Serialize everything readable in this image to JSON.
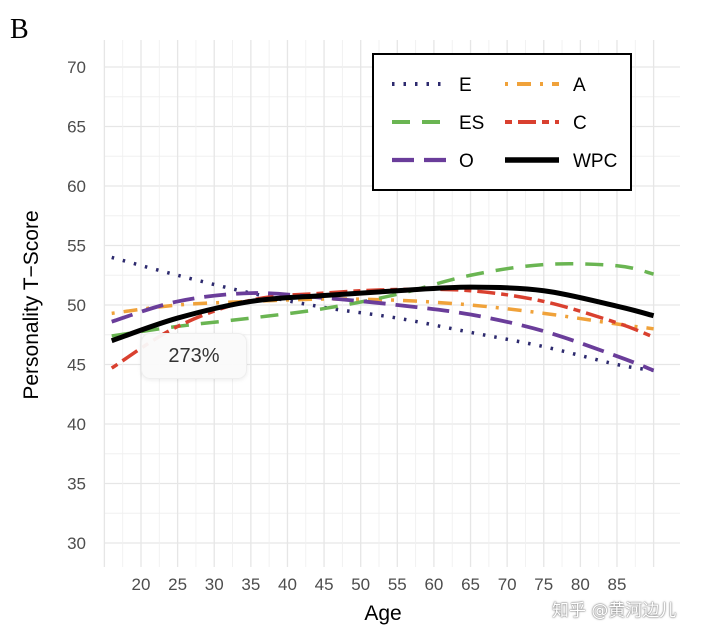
{
  "panel_label": "B",
  "tooltip": "273%",
  "watermark": "知乎 @黄河边儿",
  "chart_data": {
    "type": "line",
    "title": "",
    "xlabel": "Age",
    "ylabel": "Personality T−Score",
    "xlim": [
      15,
      90
    ],
    "ylim": [
      28,
      72
    ],
    "xticks": [
      20,
      25,
      30,
      35,
      40,
      45,
      50,
      55,
      60,
      65,
      70,
      75,
      80,
      85
    ],
    "yticks": [
      30,
      35,
      40,
      45,
      50,
      55,
      60,
      65,
      70
    ],
    "grid": true,
    "legend_position": "top-right",
    "x": [
      16,
      25,
      35,
      45,
      55,
      65,
      75,
      85,
      90
    ],
    "series": [
      {
        "name": "E",
        "color": "#2d2a6e",
        "dash": "dotted",
        "values": [
          54.0,
          52.5,
          51.0,
          49.8,
          48.9,
          47.7,
          46.5,
          45.0,
          44.5
        ]
      },
      {
        "name": "A",
        "color": "#f0a23a",
        "dash": "dotdash",
        "values": [
          49.3,
          50.0,
          50.3,
          50.5,
          50.4,
          50.0,
          49.3,
          48.4,
          48.0
        ]
      },
      {
        "name": "ES",
        "color": "#6ab552",
        "dash": "longdash",
        "values": [
          47.4,
          48.2,
          48.9,
          49.7,
          50.9,
          52.5,
          53.4,
          53.3,
          52.6
        ]
      },
      {
        "name": "C",
        "color": "#d9402f",
        "dash": "twodash",
        "values": [
          44.7,
          48.2,
          50.4,
          51.0,
          51.3,
          51.2,
          50.3,
          48.5,
          47.3
        ]
      },
      {
        "name": "O",
        "color": "#6a3d9a",
        "dash": "dashed",
        "values": [
          48.6,
          50.3,
          51.0,
          50.6,
          50.0,
          49.2,
          47.8,
          45.7,
          44.5
        ]
      },
      {
        "name": "WPC",
        "color": "#000000",
        "dash": "solid",
        "values": [
          47.0,
          48.9,
          50.3,
          50.8,
          51.2,
          51.5,
          51.2,
          49.9,
          49.1
        ]
      }
    ]
  }
}
